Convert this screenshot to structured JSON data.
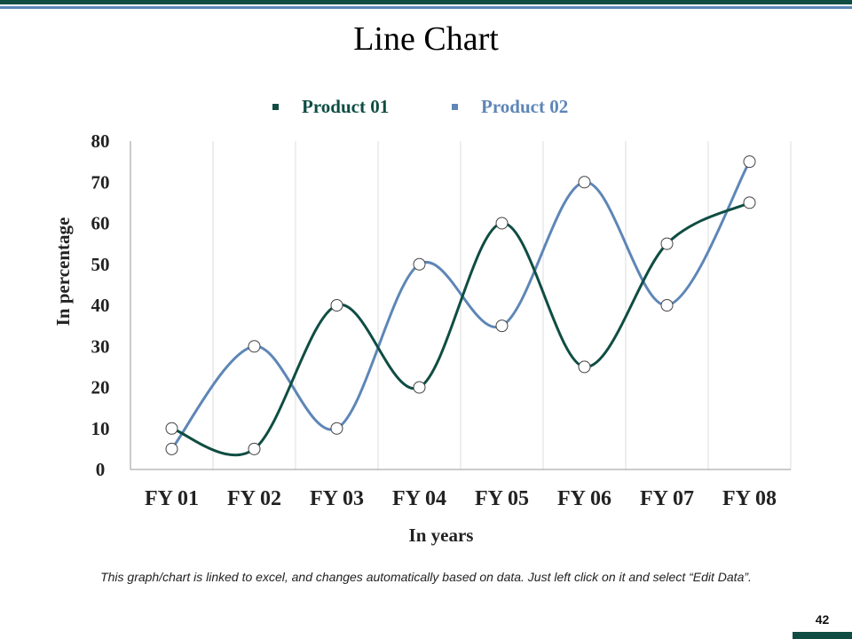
{
  "slide": {
    "title": "Line Chart",
    "footnote": "This graph/chart is linked to excel, and changes automatically based on data. Just left click on it and select “Edit Data”.",
    "page_number": "42",
    "accent_dark": "#0f4d43",
    "accent_light": "#5e86b7"
  },
  "chart_data": {
    "type": "line",
    "title": "",
    "xlabel": "In years",
    "ylabel": "In percentage",
    "categories": [
      "FY 01",
      "FY 02",
      "FY 03",
      "FY 04",
      "FY 05",
      "FY 06",
      "FY 07",
      "FY 08"
    ],
    "ylim": [
      0,
      80
    ],
    "yticks": [
      0,
      10,
      20,
      30,
      40,
      50,
      60,
      70,
      80
    ],
    "grid": "vertical",
    "legend_position": "top",
    "smooth": true,
    "series": [
      {
        "name": "Product 01",
        "color": "#0f4d43",
        "values": [
          10,
          5,
          40,
          20,
          60,
          25,
          55,
          65
        ]
      },
      {
        "name": "Product 02",
        "color": "#5e86b7",
        "values": [
          5,
          30,
          10,
          50,
          35,
          70,
          40,
          75
        ]
      }
    ]
  }
}
